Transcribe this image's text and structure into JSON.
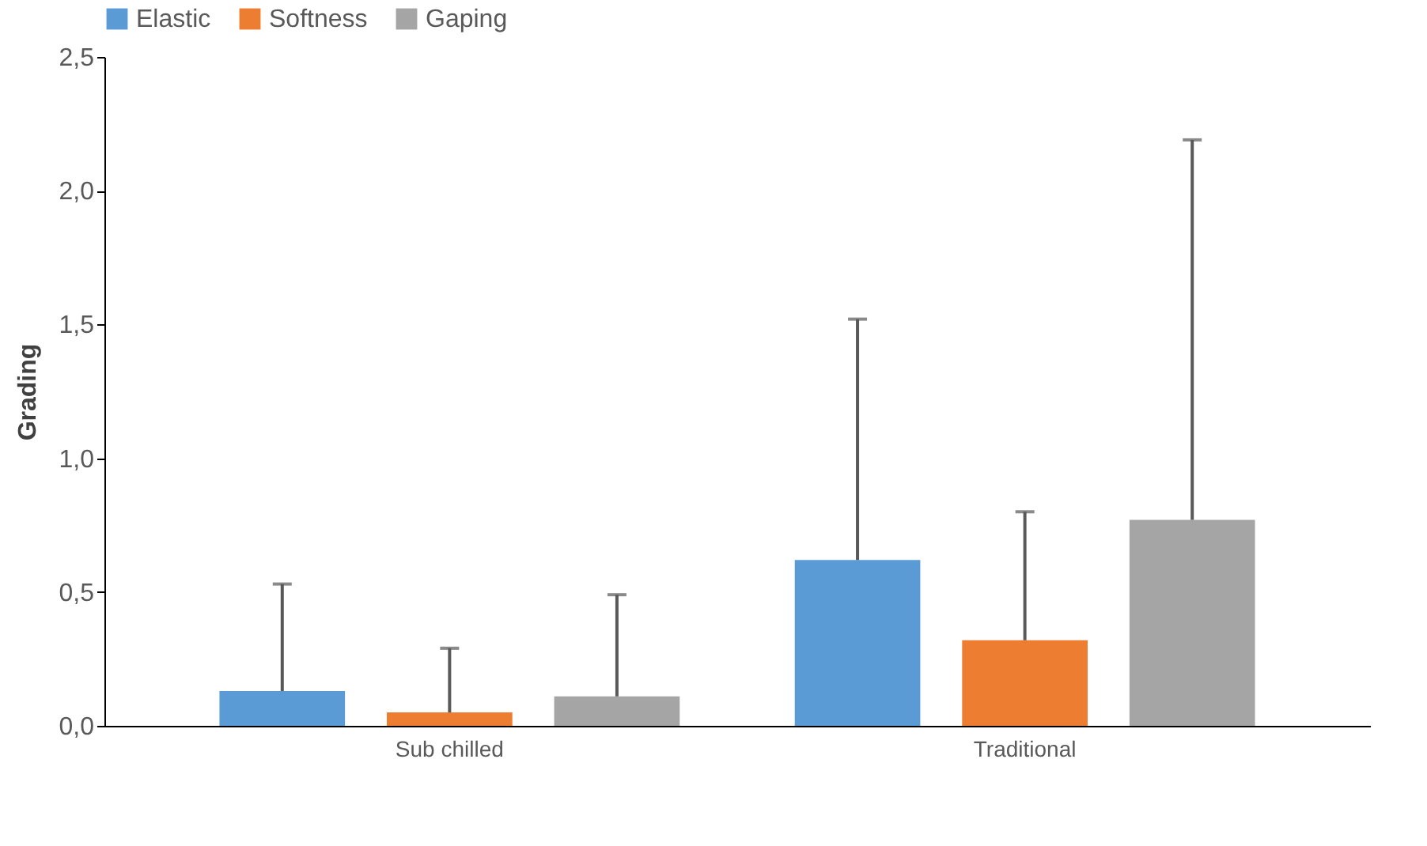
{
  "chart_data": {
    "type": "bar",
    "ylabel": "Grading",
    "categories": [
      "Sub chilled",
      "Traditional"
    ],
    "series": [
      {
        "name": "Elastic",
        "color": "#5b9bd5",
        "values": [
          0.13,
          0.62
        ],
        "errors": [
          [
            0.13,
            0.53
          ],
          [
            0.62,
            1.52
          ]
        ]
      },
      {
        "name": "Softness",
        "color": "#ed7d31",
        "values": [
          0.05,
          0.32
        ],
        "errors": [
          [
            0.05,
            0.29
          ],
          [
            0.32,
            0.8
          ]
        ]
      },
      {
        "name": "Gaping",
        "color": "#a5a5a5",
        "values": [
          0.11,
          0.77
        ],
        "errors": [
          [
            0.11,
            0.49
          ],
          [
            0.77,
            2.19
          ]
        ]
      }
    ],
    "ylim": [
      0,
      2.5
    ],
    "yticks": [
      {
        "value": 0,
        "label": "0,0"
      },
      {
        "value": 0.5,
        "label": "0,5"
      },
      {
        "value": 1,
        "label": "1,0"
      },
      {
        "value": 1.5,
        "label": "1,5"
      },
      {
        "value": 2,
        "label": "2,0"
      },
      {
        "value": 2.5,
        "label": "2,5"
      }
    ],
    "grid": false,
    "legend": "top"
  }
}
